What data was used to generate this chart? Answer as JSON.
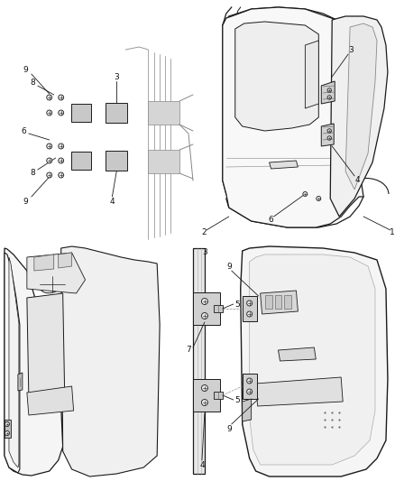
{
  "bg_color": "#ffffff",
  "fig_width": 4.38,
  "fig_height": 5.33,
  "dpi": 100,
  "lc": "#1a1a1a",
  "mc": "#555555",
  "lgt": "#aaaaaa",
  "fill_light": "#f0f0f0",
  "fill_mid": "#e0e0e0",
  "fill_dark": "#cccccc",
  "hinge_fill": "#d8d8d8",
  "screw_fill": "#e8e8e8",
  "note_fontsize": 6.0
}
